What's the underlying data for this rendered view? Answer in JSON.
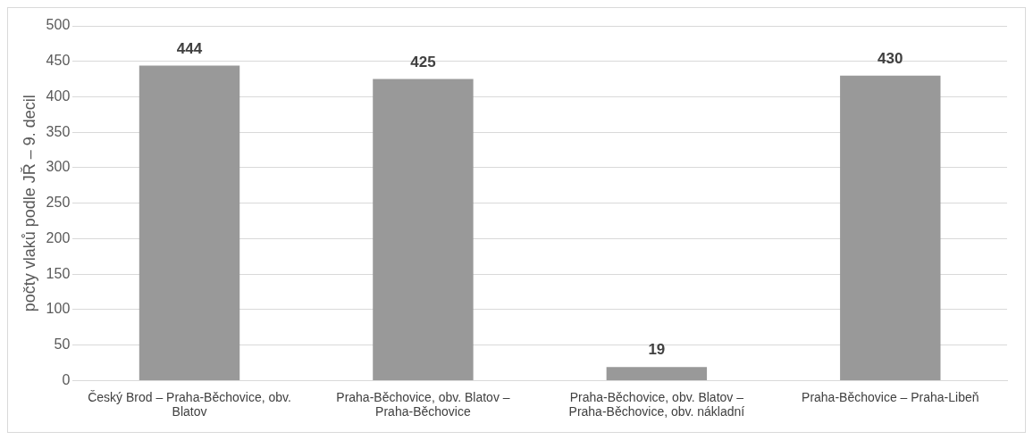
{
  "chart_data": {
    "type": "bar",
    "ylabel": "počty vlaků podle JŘ – 9. decil",
    "categories": [
      "Český Brod – Praha-Běchovice, obv. Blatov",
      "Praha-Běchovice, obv. Blatov – Praha-Běchovice",
      "Praha-Běchovice, obv. Blatov – Praha-Běchovice, obv. nákladní",
      "Praha-Běchovice – Praha-Libeň"
    ],
    "values": [
      444,
      425,
      19,
      430
    ],
    "color": "#999999",
    "ylim": [
      0,
      500
    ],
    "yticks": [
      0,
      50,
      100,
      150,
      200,
      250,
      300,
      350,
      400,
      450,
      500
    ],
    "grid": "y",
    "data_labels": true
  }
}
